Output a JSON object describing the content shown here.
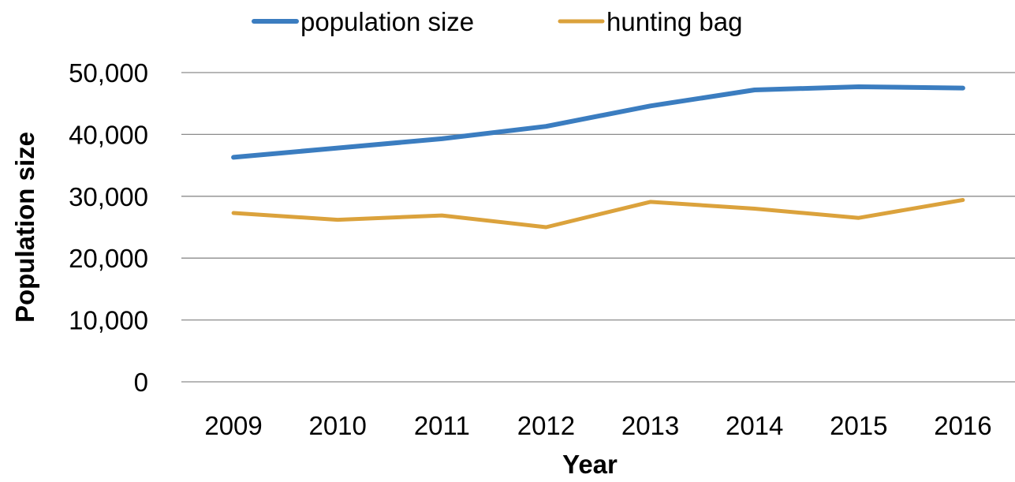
{
  "chart_data": {
    "type": "line",
    "title": "",
    "xlabel": "Year",
    "ylabel": "Population size",
    "x": [
      "2009",
      "2010",
      "2011",
      "2012",
      "2013",
      "2014",
      "2015",
      "2016"
    ],
    "yticks": [
      "0",
      "10,000",
      "20,000",
      "30,000",
      "40,000",
      "50,000"
    ],
    "ylim": [
      0,
      50000
    ],
    "grid": "horizontal",
    "legend": "top",
    "series": [
      {
        "name": "population size",
        "color": "#3b7dc0",
        "values": [
          36300,
          37800,
          39300,
          41300,
          44600,
          47200,
          47700,
          47500
        ]
      },
      {
        "name": "hunting bag",
        "color": "#dba23c",
        "values": [
          27300,
          26200,
          26900,
          25000,
          29100,
          28000,
          26500,
          29400
        ]
      }
    ]
  }
}
